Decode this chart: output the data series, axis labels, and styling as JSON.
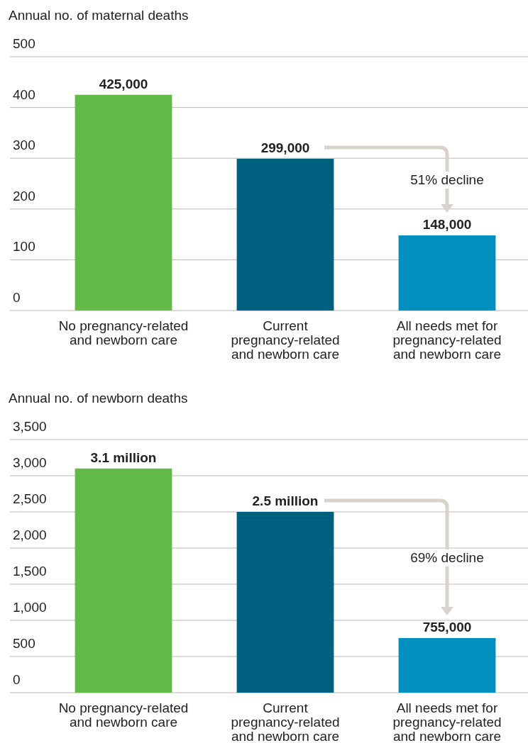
{
  "chart_data": [
    {
      "type": "bar",
      "ylabel": "Annual no. of maternal deaths",
      "categories": [
        "No pregnancy-related and newborn care",
        "Current pregnancy-related and newborn care",
        "All needs met for pregnancy-related and newborn care"
      ],
      "values": [
        425,
        299,
        148
      ],
      "colors": [
        "#62bb46",
        "#00607f",
        "#0090bf"
      ],
      "ylim": [
        0,
        500
      ],
      "yticks": [
        0,
        100,
        200,
        300,
        400,
        500
      ],
      "grid": "y",
      "annotations": [
        {
          "text": "425,000",
          "x": "No pregnancy-related and newborn care",
          "y": 425
        },
        {
          "text": "299,000",
          "x": "Current pregnancy-related and newborn care",
          "y": 299
        },
        {
          "text": "148,000",
          "x": "All needs met for pregnancy-related and newborn care",
          "y": 148
        },
        "51% decline"
      ]
    },
    {
      "type": "bar",
      "ylabel": "Annual no. of newborn deaths",
      "categories": [
        "No pregnancy-related and newborn care",
        "Current pregnancy-related and newborn care",
        "All needs met for pregnancy-related and newborn care"
      ],
      "values": [
        3100,
        2500,
        755
      ],
      "colors": [
        "#62bb46",
        "#00607f",
        "#0090bf"
      ],
      "ylim": [
        0,
        3500
      ],
      "yticks": [
        0,
        500,
        {
          "value": 1000,
          "label": "1,000"
        },
        {
          "value": 1500,
          "label": "1,500"
        },
        {
          "value": 2000,
          "label": "2,000"
        },
        {
          "value": 2500,
          "label": "2,500"
        },
        {
          "value": 3000,
          "label": "3,000"
        },
        {
          "value": 3500,
          "label": "3,500"
        }
      ],
      "grid": "y",
      "annotations": [
        {
          "text": "3.1 million",
          "x": "No pregnancy-related and newborn care",
          "y": 3100
        },
        {
          "text": "2.5 million",
          "x": "Current pregnancy-related and newborn care",
          "y": 2500
        },
        {
          "text": "755,000",
          "x": "All needs met for pregnancy-related and newborn care",
          "y": 755
        },
        "69% decline"
      ]
    }
  ]
}
